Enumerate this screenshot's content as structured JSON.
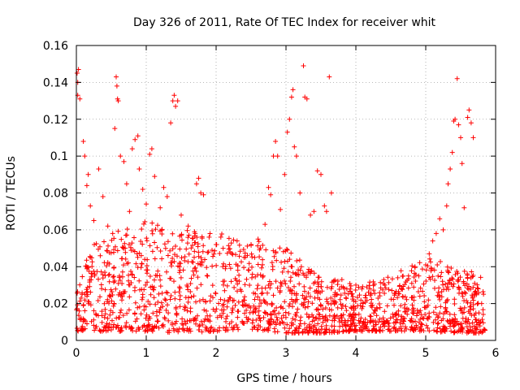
{
  "chart_data": {
    "type": "scatter",
    "title": "Day 326 of 2011, Rate Of TEC Index for receiver whit",
    "xlabel": "GPS time / hours",
    "ylabel": "ROTI / TECUs",
    "xlim": [
      0,
      6
    ],
    "ylim": [
      0,
      0.16
    ],
    "xticks": [
      0,
      1,
      2,
      3,
      4,
      5,
      6
    ],
    "xtick_labels": [
      "0",
      "1",
      "2",
      "3",
      "4",
      "5",
      "6"
    ],
    "yticks": [
      0,
      0.02,
      0.04,
      0.06,
      0.08,
      0.1,
      0.12,
      0.14,
      0.16
    ],
    "ytick_labels": [
      "0",
      "0.02",
      "0.04",
      "0.06",
      "0.08",
      "0.1",
      "0.12",
      "0.14",
      "0.16"
    ],
    "grid": true,
    "marker": "+",
    "color": "#ff0000",
    "series": [
      {
        "name": "ROTI",
        "points": [
          [
            0.01,
            0.145
          ],
          [
            0.02,
            0.14
          ],
          [
            0.03,
            0.147
          ],
          [
            0.02,
            0.133
          ],
          [
            0.05,
            0.131
          ],
          [
            0.1,
            0.108
          ],
          [
            0.12,
            0.1
          ],
          [
            0.15,
            0.084
          ],
          [
            0.17,
            0.09
          ],
          [
            0.2,
            0.073
          ],
          [
            0.25,
            0.065
          ],
          [
            0.32,
            0.093
          ],
          [
            0.38,
            0.078
          ],
          [
            0.45,
            0.062
          ],
          [
            0.52,
            0.058
          ],
          [
            0.55,
            0.115
          ],
          [
            0.57,
            0.143
          ],
          [
            0.58,
            0.138
          ],
          [
            0.59,
            0.131
          ],
          [
            0.6,
            0.13
          ],
          [
            0.63,
            0.1
          ],
          [
            0.68,
            0.097
          ],
          [
            0.72,
            0.085
          ],
          [
            0.76,
            0.07
          ],
          [
            0.8,
            0.104
          ],
          [
            0.84,
            0.109
          ],
          [
            0.88,
            0.111
          ],
          [
            0.9,
            0.093
          ],
          [
            0.95,
            0.082
          ],
          [
            1.0,
            0.074
          ],
          [
            1.05,
            0.101
          ],
          [
            1.08,
            0.104
          ],
          [
            1.12,
            0.089
          ],
          [
            1.2,
            0.072
          ],
          [
            1.25,
            0.083
          ],
          [
            1.3,
            0.078
          ],
          [
            1.35,
            0.118
          ],
          [
            1.38,
            0.13
          ],
          [
            1.4,
            0.133
          ],
          [
            1.42,
            0.127
          ],
          [
            1.45,
            0.13
          ],
          [
            1.5,
            0.068
          ],
          [
            1.6,
            0.062
          ],
          [
            1.7,
            0.058
          ],
          [
            1.72,
            0.085
          ],
          [
            1.75,
            0.088
          ],
          [
            1.78,
            0.08
          ],
          [
            1.82,
            0.079
          ],
          [
            1.9,
            0.056
          ],
          [
            2.0,
            0.052
          ],
          [
            2.1,
            0.05
          ],
          [
            2.2,
            0.048
          ],
          [
            2.3,
            0.054
          ],
          [
            2.4,
            0.045
          ],
          [
            2.5,
            0.052
          ],
          [
            2.6,
            0.055
          ],
          [
            2.7,
            0.063
          ],
          [
            2.75,
            0.083
          ],
          [
            2.78,
            0.079
          ],
          [
            2.82,
            0.1
          ],
          [
            2.85,
            0.108
          ],
          [
            2.88,
            0.1
          ],
          [
            2.92,
            0.071
          ],
          [
            2.98,
            0.09
          ],
          [
            3.02,
            0.113
          ],
          [
            3.05,
            0.12
          ],
          [
            3.08,
            0.132
          ],
          [
            3.1,
            0.136
          ],
          [
            3.12,
            0.105
          ],
          [
            3.15,
            0.1
          ],
          [
            3.2,
            0.08
          ],
          [
            3.25,
            0.149
          ],
          [
            3.27,
            0.132
          ],
          [
            3.3,
            0.131
          ],
          [
            3.35,
            0.068
          ],
          [
            3.4,
            0.07
          ],
          [
            3.45,
            0.092
          ],
          [
            3.5,
            0.09
          ],
          [
            3.55,
            0.073
          ],
          [
            3.58,
            0.07
          ],
          [
            3.62,
            0.143
          ],
          [
            3.65,
            0.08
          ],
          [
            3.8,
            0.033
          ],
          [
            4.0,
            0.03
          ],
          [
            4.2,
            0.028
          ],
          [
            4.4,
            0.033
          ],
          [
            4.6,
            0.034
          ],
          [
            4.8,
            0.031
          ],
          [
            4.9,
            0.035
          ],
          [
            5.0,
            0.041
          ],
          [
            5.05,
            0.047
          ],
          [
            5.1,
            0.054
          ],
          [
            5.15,
            0.058
          ],
          [
            5.2,
            0.066
          ],
          [
            5.25,
            0.06
          ],
          [
            5.3,
            0.073
          ],
          [
            5.32,
            0.085
          ],
          [
            5.35,
            0.093
          ],
          [
            5.38,
            0.102
          ],
          [
            5.4,
            0.119
          ],
          [
            5.42,
            0.12
          ],
          [
            5.45,
            0.142
          ],
          [
            5.47,
            0.117
          ],
          [
            5.5,
            0.11
          ],
          [
            5.52,
            0.096
          ],
          [
            5.55,
            0.072
          ],
          [
            5.6,
            0.121
          ],
          [
            5.62,
            0.125
          ],
          [
            5.65,
            0.118
          ],
          [
            5.68,
            0.11
          ],
          [
            5.7,
            0.031
          ],
          [
            5.75,
            0.028
          ],
          [
            5.8,
            0.02
          ],
          [
            5.82,
            0.005
          ]
        ],
        "background_band": {
          "description": "dense cluster of points filling the lower region of the plot",
          "envelope": [
            [
              0.0,
              0.005,
              0.045
            ],
            [
              0.5,
              0.005,
              0.06
            ],
            [
              1.0,
              0.005,
              0.065
            ],
            [
              1.5,
              0.004,
              0.06
            ],
            [
              2.0,
              0.005,
              0.06
            ],
            [
              2.5,
              0.006,
              0.055
            ],
            [
              3.0,
              0.004,
              0.05
            ],
            [
              3.5,
              0.004,
              0.035
            ],
            [
              4.0,
              0.005,
              0.03
            ],
            [
              4.5,
              0.005,
              0.035
            ],
            [
              5.0,
              0.005,
              0.045
            ],
            [
              5.5,
              0.004,
              0.04
            ],
            [
              5.85,
              0.004,
              0.035
            ]
          ],
          "count": 1700
        }
      }
    ]
  }
}
